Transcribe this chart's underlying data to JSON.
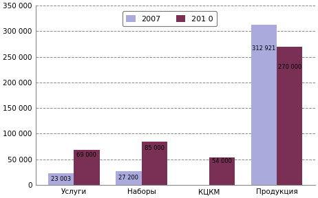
{
  "categories": [
    "Услуги",
    "Наборы",
    "КЦКМ",
    "Продукция"
  ],
  "series_2007": [
    23003,
    27200,
    0,
    312921
  ],
  "series_2010": [
    69000,
    85000,
    54000,
    270000
  ],
  "labels_2007": [
    "23 003",
    "27 200",
    "",
    "312 921"
  ],
  "labels_2010": [
    "69 000",
    "85 000",
    "54 000",
    "270 000"
  ],
  "color_2007": "#aaaadd",
  "color_2010": "#7a3055",
  "legend_2007": "2007",
  "legend_2010": "201 0",
  "ylim": [
    0,
    350000
  ],
  "yticks": [
    0,
    50000,
    100000,
    150000,
    200000,
    250000,
    300000,
    350000
  ],
  "bar_width": 0.38,
  "background_color": "#ffffff",
  "plot_bg_color": "#ffffff",
  "grid_color": "#888888"
}
